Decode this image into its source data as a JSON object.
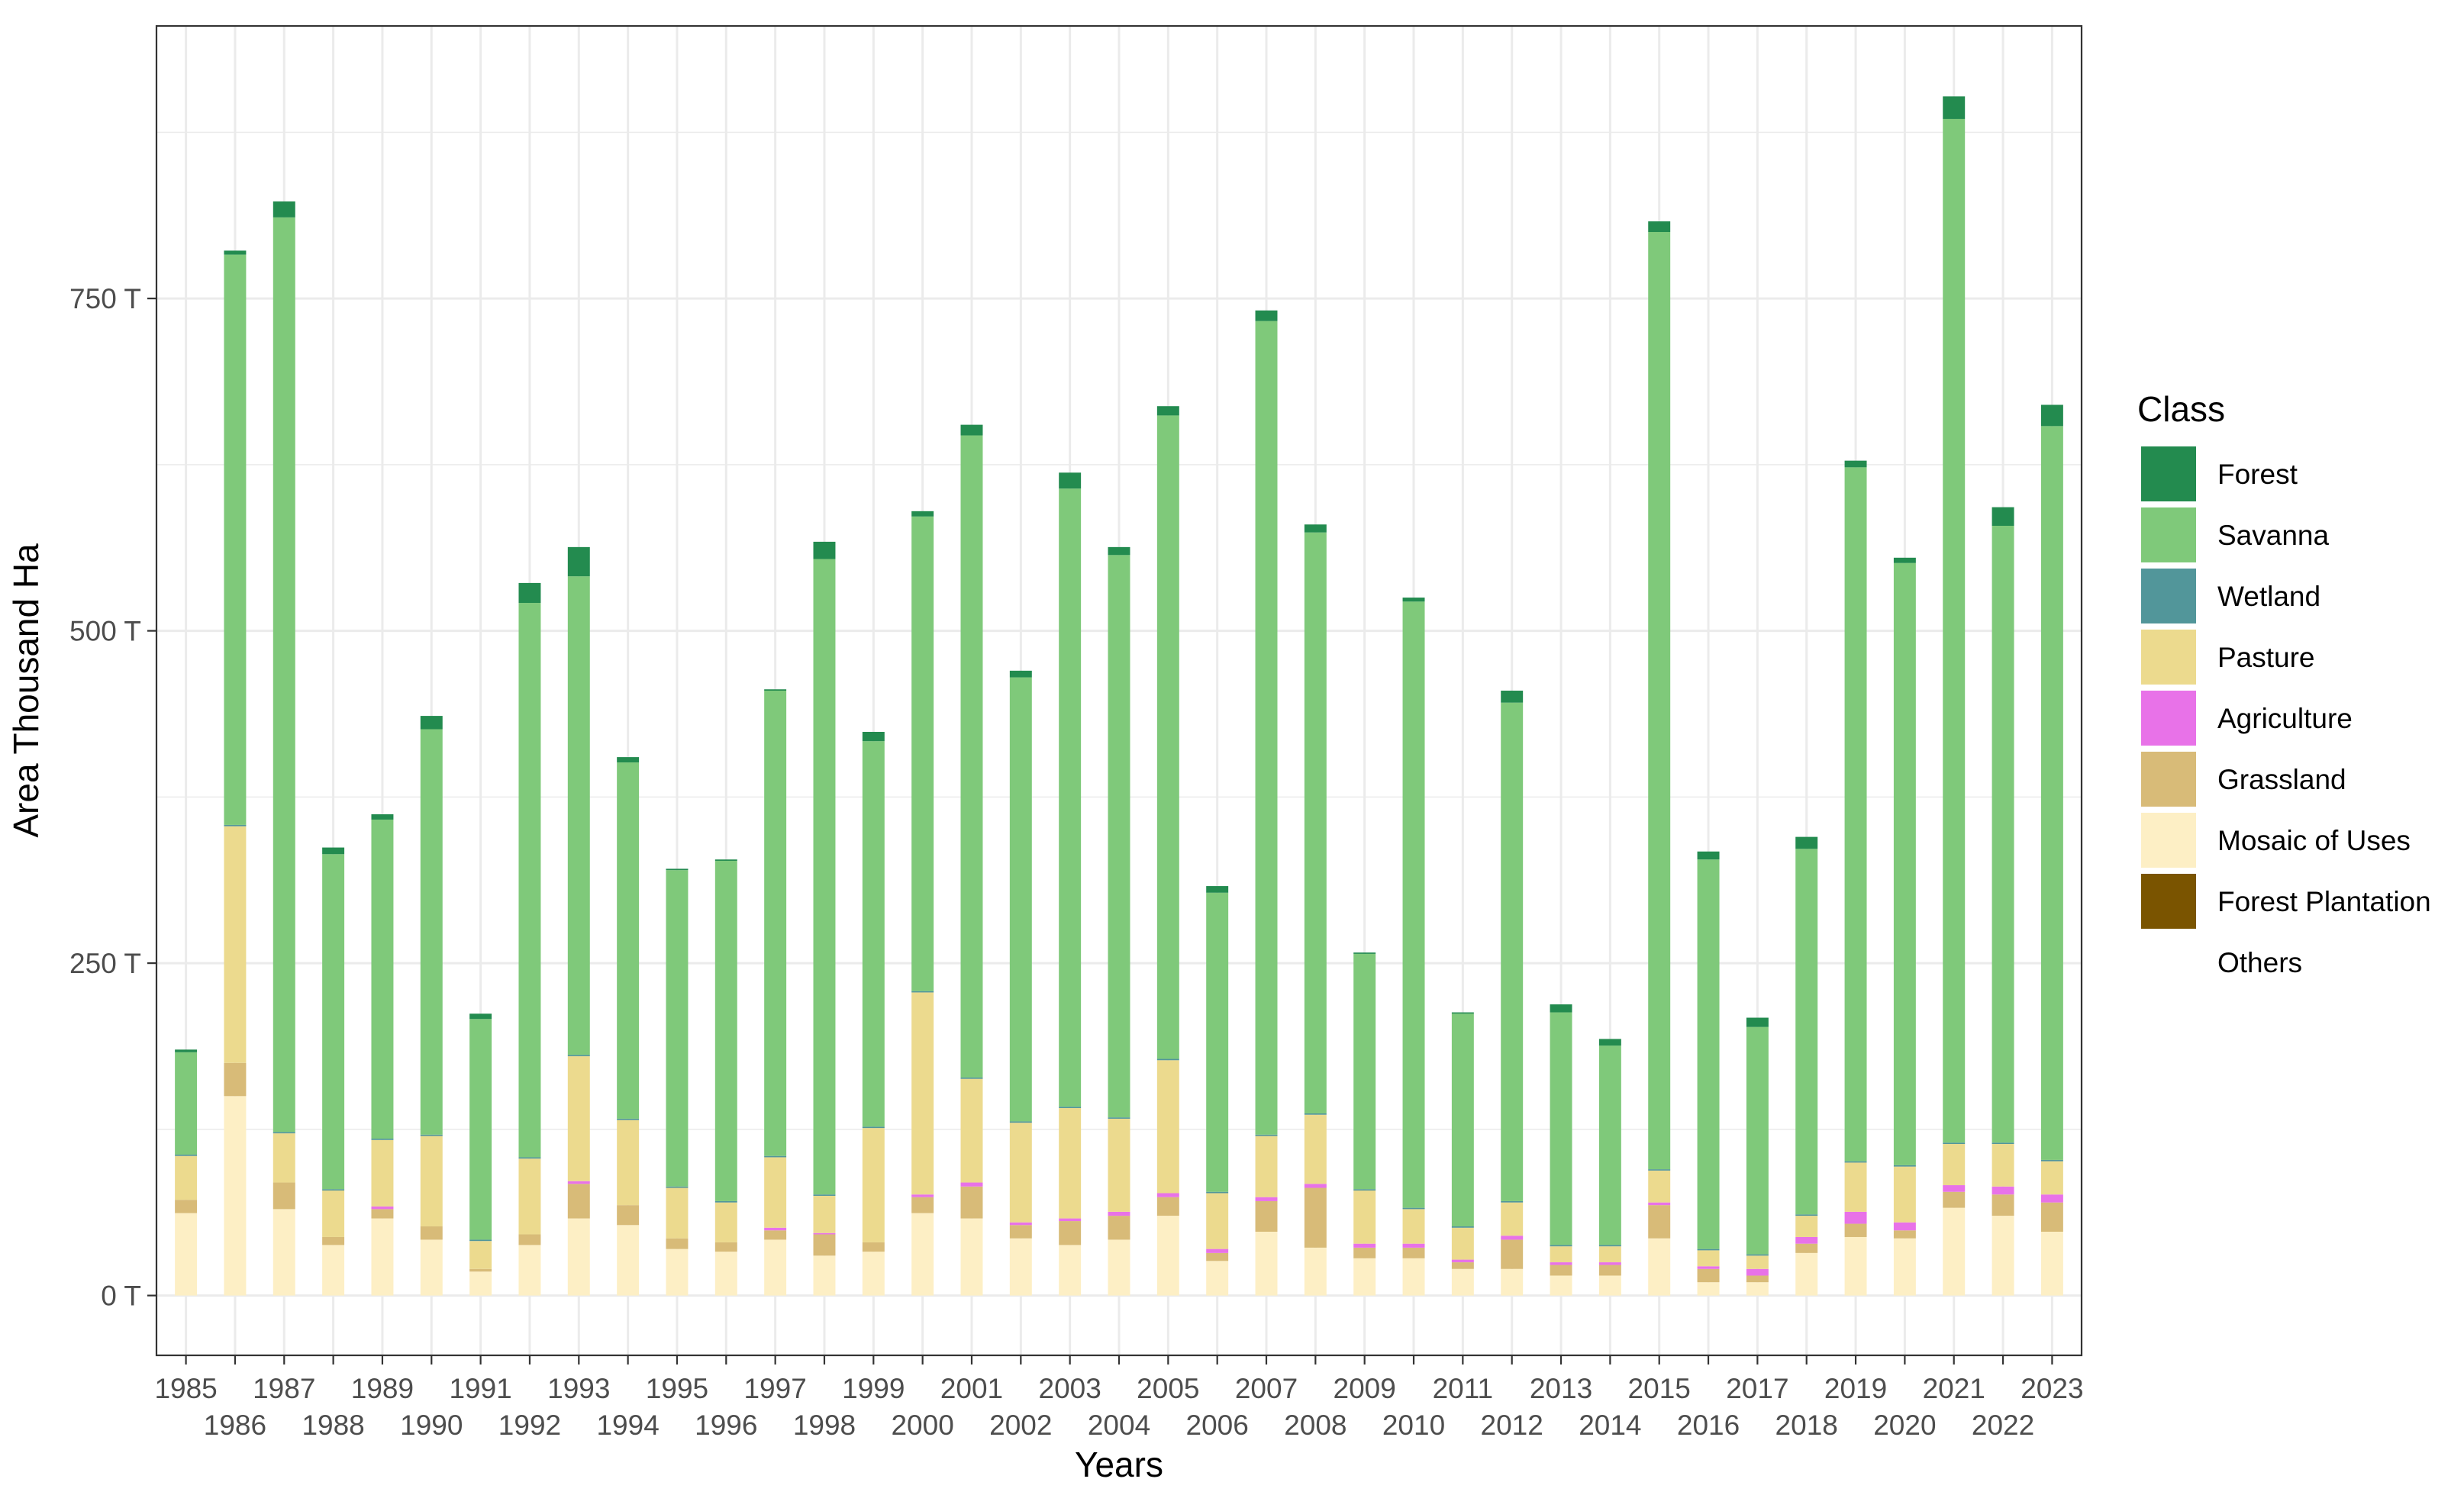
{
  "chart_data": {
    "type": "bar",
    "stacked": true,
    "xlabel": "Years",
    "ylabel": "Area Thousand Ha",
    "ylim": [
      -45,
      955
    ],
    "yticks": [
      0,
      250,
      500,
      750
    ],
    "ytick_labels": [
      "0 T",
      "250 T",
      "500 T",
      "750 T"
    ],
    "grid": true,
    "legend": {
      "title": "Class",
      "position": "right",
      "entries": [
        {
          "name": "Forest",
          "color": "#238b4f"
        },
        {
          "name": "Savanna",
          "color": "#7fc97a"
        },
        {
          "name": "Wetland",
          "color": "#52969a"
        },
        {
          "name": "Pasture",
          "color": "#ecda8e"
        },
        {
          "name": "Agriculture",
          "color": "#e872e8"
        },
        {
          "name": "Grassland",
          "color": "#d8bb78"
        },
        {
          "name": "Mosaic of Uses",
          "color": "#fdefc5"
        },
        {
          "name": "Forest Plantation",
          "color": "#7a5400"
        },
        {
          "name": "Others",
          "color": "#ffffff"
        }
      ]
    },
    "categories": [
      "1985",
      "1986",
      "1987",
      "1988",
      "1989",
      "1990",
      "1991",
      "1992",
      "1993",
      "1994",
      "1995",
      "1996",
      "1997",
      "1998",
      "1999",
      "2000",
      "2001",
      "2002",
      "2003",
      "2004",
      "2005",
      "2006",
      "2007",
      "2008",
      "2009",
      "2010",
      "2011",
      "2012",
      "2013",
      "2014",
      "2015",
      "2016",
      "2017",
      "2018",
      "2019",
      "2020",
      "2021",
      "2022",
      "2023"
    ],
    "series": [
      {
        "name": "Mosaic of Uses",
        "color": "#fdefc5",
        "values": [
          62,
          150,
          65,
          38,
          58,
          42,
          18,
          38,
          58,
          53,
          35,
          33,
          42,
          30,
          33,
          62,
          58,
          43,
          38,
          42,
          60,
          26,
          48,
          36,
          28,
          28,
          20,
          20,
          15,
          15,
          43,
          10,
          10,
          32,
          44,
          43,
          66,
          60,
          48
        ]
      },
      {
        "name": "Grassland",
        "color": "#d8bb78",
        "values": [
          10,
          25,
          20,
          6,
          7,
          10,
          2,
          8,
          26,
          15,
          8,
          7,
          7,
          16,
          7,
          12,
          24,
          10,
          18,
          18,
          14,
          6,
          23,
          45,
          8,
          8,
          5,
          22,
          8,
          8,
          25,
          10,
          5,
          7,
          10,
          6,
          12,
          16,
          22
        ]
      },
      {
        "name": "Agriculture",
        "color": "#e872e8",
        "values": [
          0,
          0,
          0,
          0,
          2,
          0,
          0,
          0,
          2,
          0,
          0,
          0,
          2,
          1,
          0,
          2,
          3,
          2,
          2,
          3,
          3,
          3,
          3,
          3,
          3,
          3,
          2,
          3,
          2,
          2,
          2,
          2,
          5,
          5,
          9,
          6,
          5,
          6,
          6
        ]
      },
      {
        "name": "Pasture",
        "color": "#ecda8e",
        "values": [
          33,
          178,
          37,
          35,
          50,
          68,
          21,
          57,
          94,
          64,
          38,
          30,
          53,
          28,
          86,
          152,
          78,
          75,
          83,
          70,
          100,
          42,
          46,
          52,
          40,
          26,
          24,
          25,
          12,
          12,
          24,
          12,
          10,
          16,
          37,
          42,
          31,
          32,
          25
        ]
      },
      {
        "name": "Wetland",
        "color": "#52969a",
        "values": [
          1,
          1,
          1,
          1,
          1,
          1,
          1,
          1,
          1,
          1,
          1,
          1,
          1,
          1,
          1,
          1,
          1,
          1,
          1,
          1,
          1,
          1,
          1,
          1,
          1,
          1,
          1,
          1,
          1,
          1,
          1,
          1,
          1,
          1,
          1,
          1,
          1,
          1,
          1
        ]
      },
      {
        "name": "Savanna",
        "color": "#7fc97a",
        "values": [
          77,
          429,
          688,
          252,
          240,
          305,
          166,
          417,
          360,
          268,
          238,
          256,
          350,
          478,
          290,
          357,
          483,
          334,
          465,
          423,
          484,
          225,
          612,
          437,
          177,
          456,
          160,
          375,
          175,
          150,
          705,
          293,
          171,
          275,
          522,
          453,
          770,
          464,
          552
        ]
      },
      {
        "name": "Forest",
        "color": "#238b4f",
        "values": [
          2,
          3,
          12,
          5,
          4,
          10,
          4,
          15,
          22,
          4,
          1,
          1,
          1,
          13,
          7,
          4,
          8,
          5,
          12,
          6,
          7,
          5,
          8,
          6,
          1,
          3,
          1,
          9,
          6,
          5,
          8,
          6,
          7,
          9,
          5,
          4,
          17,
          14,
          16
        ]
      }
    ]
  }
}
